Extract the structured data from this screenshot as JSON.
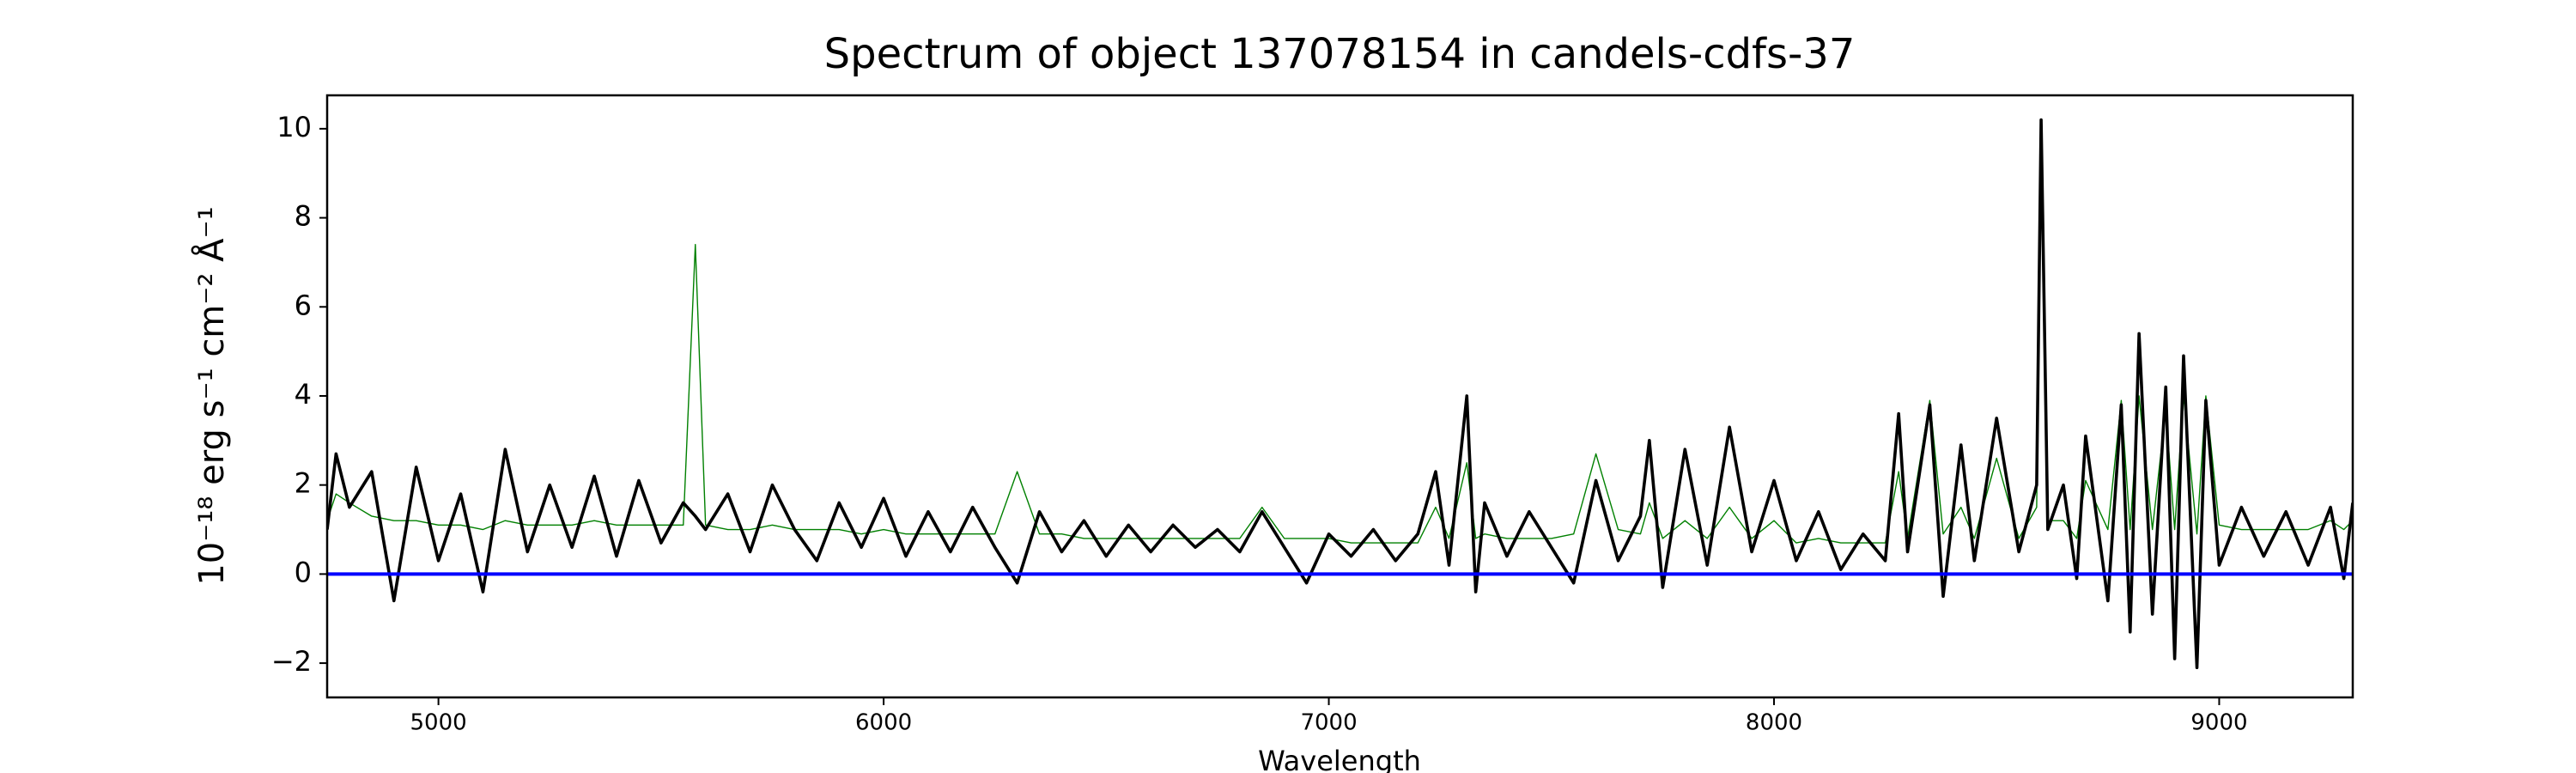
{
  "chart_data": {
    "type": "line",
    "title": "Spectrum of object 137078154 in candels-cdfs-37",
    "xlabel": "Wavelength",
    "ylabel": "10⁻¹⁸ erg s⁻¹ cm⁻² Å⁻¹",
    "x": [
      4750,
      4770,
      4800,
      4850,
      4900,
      4950,
      5000,
      5050,
      5100,
      5150,
      5200,
      5250,
      5300,
      5350,
      5400,
      5450,
      5500,
      5550,
      5577,
      5600,
      5650,
      5700,
      5750,
      5800,
      5850,
      5900,
      5950,
      6000,
      6050,
      6100,
      6150,
      6200,
      6250,
      6300,
      6350,
      6400,
      6450,
      6500,
      6550,
      6600,
      6650,
      6700,
      6750,
      6800,
      6850,
      6900,
      6950,
      7000,
      7050,
      7100,
      7150,
      7200,
      7240,
      7270,
      7310,
      7330,
      7350,
      7400,
      7450,
      7500,
      7550,
      7600,
      7650,
      7700,
      7720,
      7750,
      7800,
      7850,
      7900,
      7950,
      8000,
      8050,
      8100,
      8150,
      8200,
      8250,
      8280,
      8300,
      8350,
      8380,
      8420,
      8450,
      8500,
      8550,
      8590,
      8600,
      8615,
      8650,
      8680,
      8700,
      8750,
      8780,
      8800,
      8820,
      8850,
      8880,
      8900,
      8920,
      8950,
      8970,
      9000,
      9050,
      9100,
      9150,
      9200,
      9250,
      9280,
      9300
    ],
    "series": [
      {
        "color": "#008000",
        "values": [
          1.2,
          1.8,
          1.6,
          1.3,
          1.2,
          1.2,
          1.1,
          1.1,
          1.0,
          1.2,
          1.1,
          1.1,
          1.1,
          1.2,
          1.1,
          1.1,
          1.1,
          1.1,
          7.4,
          1.1,
          1.0,
          1.0,
          1.1,
          1.0,
          1.0,
          1.0,
          0.9,
          1.0,
          0.9,
          0.9,
          0.9,
          0.9,
          0.9,
          2.3,
          0.9,
          0.9,
          0.8,
          0.8,
          0.8,
          0.8,
          0.8,
          0.8,
          0.8,
          0.8,
          1.5,
          0.8,
          0.8,
          0.8,
          0.7,
          0.7,
          0.7,
          0.7,
          1.5,
          0.8,
          2.5,
          0.8,
          0.9,
          0.8,
          0.8,
          0.8,
          0.9,
          2.7,
          1.0,
          0.9,
          1.6,
          0.8,
          1.2,
          0.8,
          1.5,
          0.8,
          1.2,
          0.7,
          0.8,
          0.7,
          0.7,
          0.7,
          2.3,
          0.8,
          3.9,
          0.9,
          1.5,
          0.8,
          2.6,
          0.8,
          1.5,
          9.5,
          1.2,
          1.2,
          0.8,
          2.1,
          1.0,
          3.9,
          1.0,
          4.0,
          1.0,
          3.7,
          1.0,
          4.0,
          0.9,
          4.0,
          1.1,
          1.0,
          1.0,
          1.0,
          1.0,
          1.2,
          1.0,
          1.2
        ]
      },
      {
        "color": "#000000",
        "values": [
          1.0,
          2.7,
          1.5,
          2.3,
          -0.6,
          2.4,
          0.3,
          1.8,
          -0.4,
          2.8,
          0.5,
          2.0,
          0.6,
          2.2,
          0.4,
          2.1,
          0.7,
          1.6,
          1.3,
          1.0,
          1.8,
          0.5,
          2.0,
          1.0,
          0.3,
          1.6,
          0.6,
          1.7,
          0.4,
          1.4,
          0.5,
          1.5,
          0.6,
          -0.2,
          1.4,
          0.5,
          1.2,
          0.4,
          1.1,
          0.5,
          1.1,
          0.6,
          1.0,
          0.5,
          1.4,
          0.6,
          -0.2,
          0.9,
          0.4,
          1.0,
          0.3,
          0.9,
          2.3,
          0.2,
          4.0,
          -0.4,
          1.6,
          0.4,
          1.4,
          0.6,
          -0.2,
          2.1,
          0.3,
          1.3,
          3.0,
          -0.3,
          2.8,
          0.2,
          3.3,
          0.5,
          2.1,
          0.3,
          1.4,
          0.1,
          0.9,
          0.3,
          3.6,
          0.5,
          3.8,
          -0.5,
          2.9,
          0.3,
          3.5,
          0.5,
          2.0,
          10.2,
          1.0,
          2.0,
          -0.1,
          3.1,
          -0.6,
          3.8,
          -1.3,
          5.4,
          -0.9,
          4.2,
          -1.9,
          4.9,
          -2.1,
          3.9,
          0.2,
          1.5,
          0.4,
          1.4,
          0.2,
          1.5,
          -0.1,
          1.6
        ]
      }
    ],
    "zero_line": {
      "value": 0,
      "color": "#0000ff"
    },
    "xlim": [
      4750,
      9300
    ],
    "ylim": [
      -2.77,
      10.75
    ],
    "xticks": [
      5000,
      6000,
      7000,
      8000,
      9000
    ],
    "yticks": [
      {
        "value": -2,
        "label": "−2"
      },
      0,
      2,
      4,
      6,
      8,
      10
    ]
  }
}
